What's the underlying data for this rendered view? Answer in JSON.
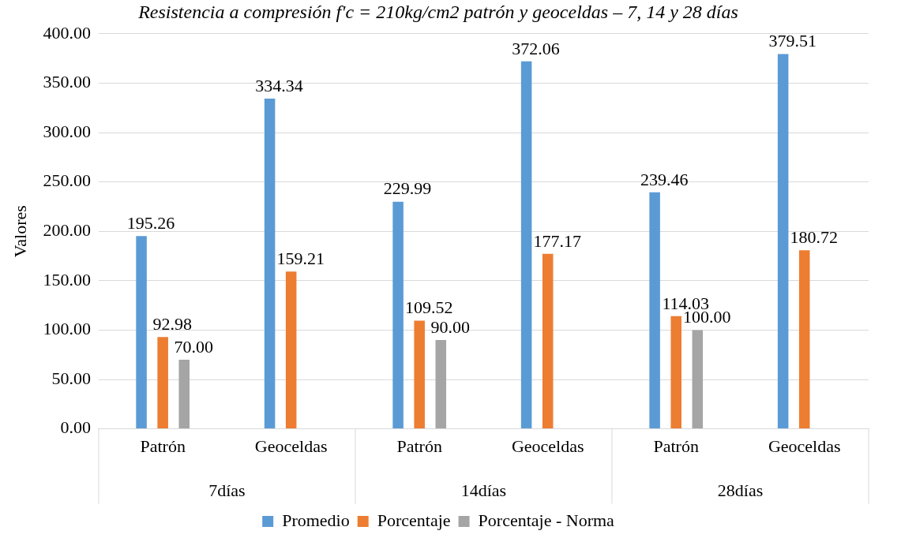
{
  "chart_data": {
    "type": "bar",
    "title": "Resistencia a compresión f'c = 210kg/cm2 patrón y geoceldas – 7, 14 y 28 días",
    "ylabel": "Valores",
    "categories": [
      "Patrón",
      "Geoceldas",
      "Patrón",
      "Geoceldas",
      "Patrón",
      "Geoceldas"
    ],
    "annotations": [
      "7días",
      "14días",
      "28días"
    ],
    "series": [
      {
        "name": "Promedio",
        "color": "#5b9bd5",
        "values": [
          195.26,
          334.34,
          229.99,
          372.06,
          239.46,
          379.51
        ],
        "value_labels": [
          "195.26",
          "334.34",
          "229.99",
          "372.06",
          "239.46",
          "379.51"
        ]
      },
      {
        "name": "Porcentaje",
        "color": "#ed7d31",
        "values": [
          92.98,
          159.21,
          109.52,
          177.17,
          114.03,
          180.72
        ],
        "value_labels": [
          "92.98",
          "159.21",
          "109.52",
          "177.17",
          "114.03",
          "180.72"
        ]
      },
      {
        "name": "Porcentaje - Norma",
        "color": "#a5a5a5",
        "values": [
          70,
          null,
          90,
          null,
          100,
          null
        ],
        "value_labels": [
          "70.00",
          null,
          "90.00",
          null,
          "100.00",
          null
        ]
      }
    ],
    "ylim": [
      0,
      400
    ],
    "yticks": [
      {
        "value": 0,
        "label": "0.00"
      },
      {
        "value": 50,
        "label": "50.00"
      },
      {
        "value": 100,
        "label": "100.00"
      },
      {
        "value": 150,
        "label": "150.00"
      },
      {
        "value": 200,
        "label": "200.00"
      },
      {
        "value": 250,
        "label": "250.00"
      },
      {
        "value": 300,
        "label": "300.00"
      },
      {
        "value": 350,
        "label": "350.00"
      },
      {
        "value": 400,
        "label": "400.00"
      }
    ],
    "grid": "y",
    "legend": "bottom"
  }
}
